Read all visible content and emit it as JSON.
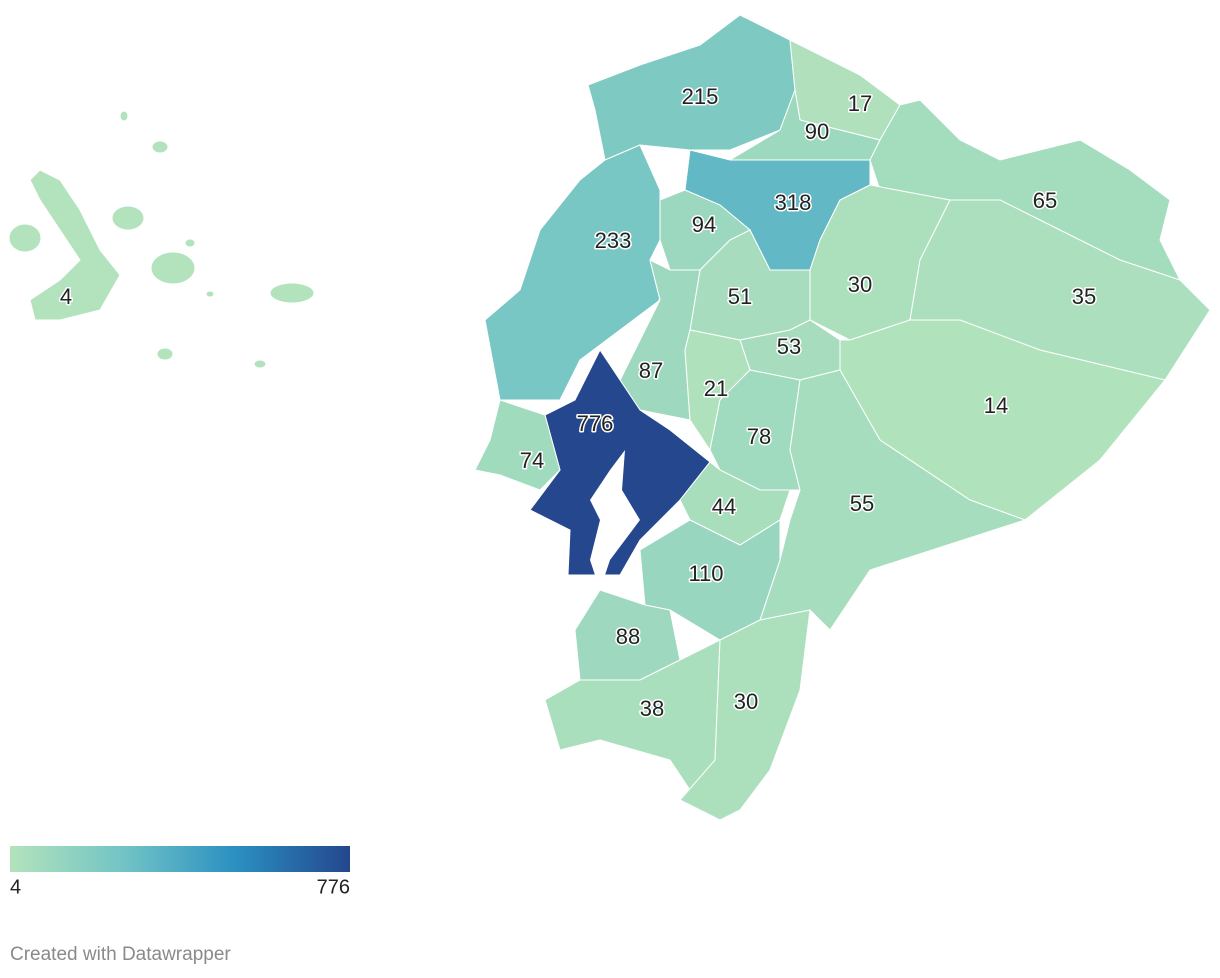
{
  "map": {
    "regions": [
      {
        "value": 215
      },
      {
        "value": 17
      },
      {
        "value": 90
      },
      {
        "value": 318
      },
      {
        "value": 65
      },
      {
        "value": 233
      },
      {
        "value": 94
      },
      {
        "value": 30
      },
      {
        "value": 35
      },
      {
        "value": 51
      },
      {
        "value": 87
      },
      {
        "value": 53
      },
      {
        "value": 21
      },
      {
        "value": 14
      },
      {
        "value": 78
      },
      {
        "value": 776
      },
      {
        "value": 74
      },
      {
        "value": 44
      },
      {
        "value": 55
      },
      {
        "value": 110
      },
      {
        "value": 88
      },
      {
        "value": 38
      },
      {
        "value": 30
      },
      {
        "value": 4
      }
    ]
  },
  "legend": {
    "min": 4,
    "max": 776,
    "colors": [
      "#b3e3bc",
      "#72c4c5",
      "#2a8fc1",
      "#24478e"
    ]
  },
  "credit": "Created with Datawrapper"
}
